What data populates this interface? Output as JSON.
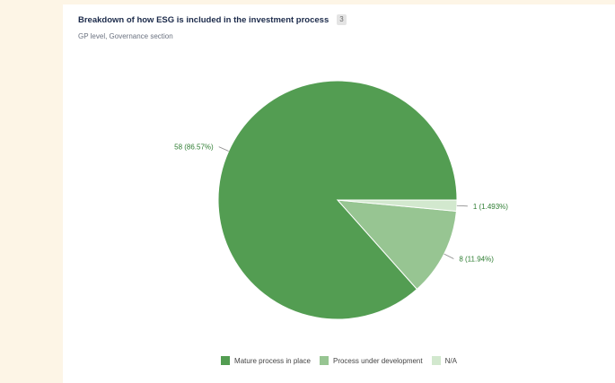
{
  "chart_data": {
    "type": "pie",
    "title": "Breakdown of how ESG is included in the investment process",
    "title_badge": "3",
    "subtitle": "GP level, Governance section",
    "slices": [
      {
        "name": "Mature process in place",
        "value": 58,
        "label": "58 (86.57%)",
        "color": "#539d52"
      },
      {
        "name": "Process under development",
        "value": 8,
        "label": "8 (11.94%)",
        "color": "#97c592"
      },
      {
        "name": "N/A",
        "value": 1,
        "label": "1 (1.493%)",
        "color": "#d2e8ce"
      }
    ],
    "legend_position": "bottom",
    "label_color": "#2e7d32"
  }
}
